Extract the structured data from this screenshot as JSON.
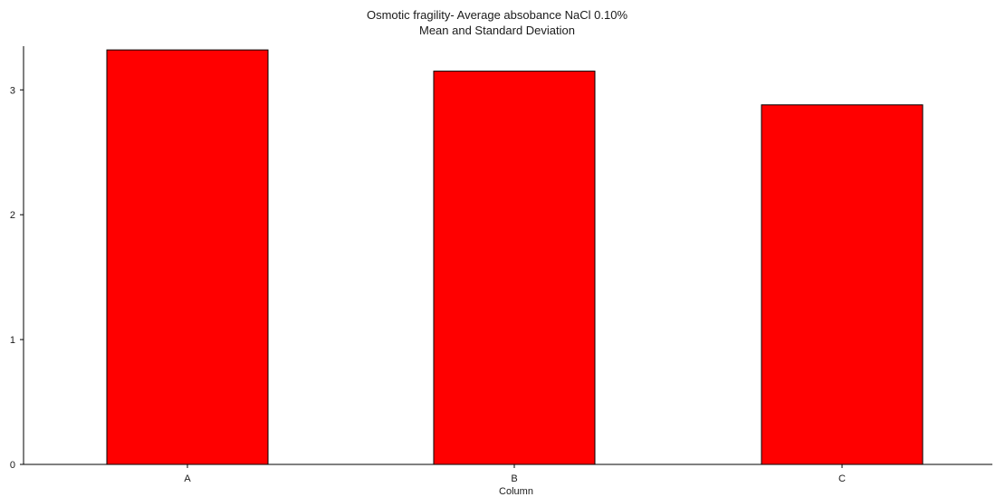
{
  "chart_data": {
    "type": "bar",
    "title": "Osmotic fragility- Average absobance NaCl 0.10%",
    "subtitle": "Mean and Standard Deviation",
    "xlabel": "Column",
    "ylabel": "",
    "categories": [
      "A",
      "B",
      "C"
    ],
    "values": [
      3.32,
      3.15,
      2.88
    ],
    "ylim": [
      0,
      3.35
    ],
    "yticks": [
      0,
      1,
      2,
      3
    ],
    "grid": false,
    "legend": "none",
    "bar_color": "#ff0000",
    "bar_edge_color": "#000000"
  }
}
